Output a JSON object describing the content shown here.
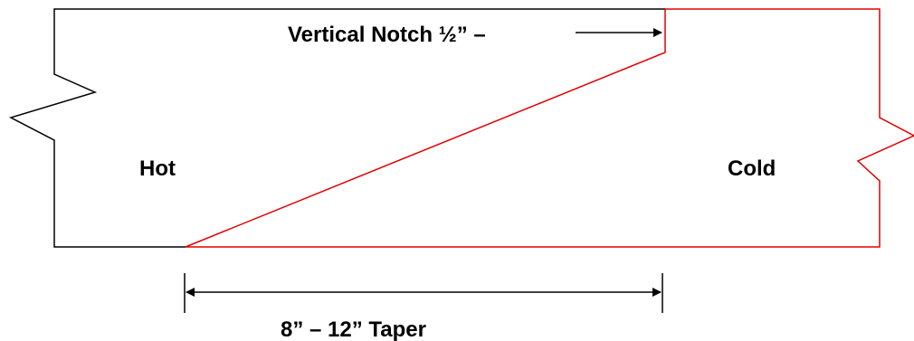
{
  "labels": {
    "notch": "Vertical Notch ½” –",
    "hot": "Hot",
    "cold": "Cold",
    "taper": "8” – 12” Taper"
  },
  "colors": {
    "hot_outline": "#000000",
    "cold_outline": "#e00000"
  }
}
